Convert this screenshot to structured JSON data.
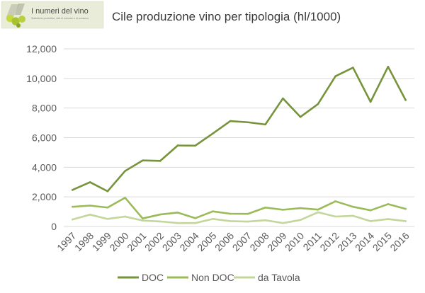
{
  "logo": {
    "name": "I numeri del vino",
    "tagline": "Statistiche produttive, dati di mercato e di consumo"
  },
  "chart_data": {
    "type": "line",
    "title": "Cile produzione vino per tipologia (hl/1000)",
    "xlabel": "",
    "ylabel": "",
    "x": [
      "1997",
      "1998",
      "1999",
      "2000",
      "2001",
      "2002",
      "2003",
      "2004",
      "2005",
      "2006",
      "2007",
      "2008",
      "2009",
      "2010",
      "2011",
      "2012",
      "2013",
      "2014",
      "2015",
      "2016"
    ],
    "ylim": [
      0,
      12000
    ],
    "yticks": [
      0,
      2000,
      4000,
      6000,
      8000,
      10000,
      12000
    ],
    "ytick_labels": [
      "0",
      "2,000",
      "4,000",
      "6,000",
      "8,000",
      "10,000",
      "12,000"
    ],
    "grid": true,
    "legend_position": "bottom",
    "series": [
      {
        "name": "DOC",
        "color": "#77933c",
        "values": [
          2470,
          2990,
          2380,
          3750,
          4460,
          4430,
          5470,
          5460,
          6280,
          7120,
          7040,
          6890,
          8650,
          7400,
          8270,
          10150,
          10730,
          8420,
          10790,
          8540
        ]
      },
      {
        "name": "Non DOC",
        "color": "#9bbb59",
        "values": [
          1330,
          1410,
          1280,
          1940,
          540,
          810,
          940,
          560,
          1020,
          860,
          850,
          1280,
          1130,
          1240,
          1140,
          1700,
          1330,
          1090,
          1510,
          1190
        ]
      },
      {
        "name": "da Tavola",
        "color": "#c3d69b",
        "values": [
          470,
          800,
          510,
          670,
          400,
          340,
          230,
          230,
          510,
          360,
          330,
          420,
          230,
          440,
          960,
          670,
          720,
          360,
          500,
          360
        ]
      }
    ]
  }
}
